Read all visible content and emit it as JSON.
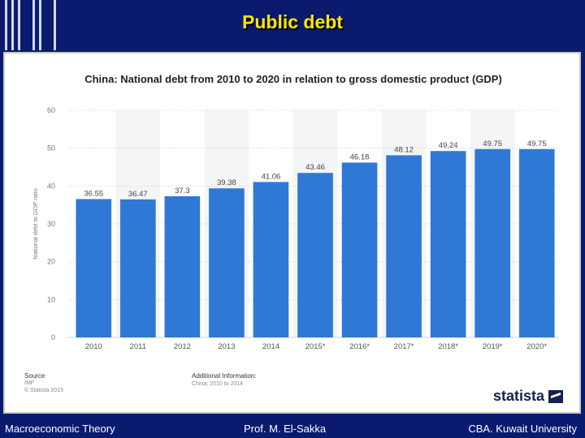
{
  "slide": {
    "title": "Public debt",
    "footer_left": "Macroeconomic Theory",
    "footer_center": "Prof. M. El-Sakka",
    "footer_right": "CBA. Kuwait University"
  },
  "source": {
    "label": "Source",
    "name": "IMF",
    "copyright": "© Statista 2015",
    "additional_label": "Additional Information:",
    "additional_text": "China; 2010 to 2014",
    "logo": "statista"
  },
  "colors": {
    "bar": "#2f78d6",
    "background": "#0a1a6e",
    "title": "#ffe600"
  },
  "chart_data": {
    "type": "bar",
    "title": "China: National debt from 2010 to 2020 in relation to gross domestic product (GDP)",
    "xlabel": "",
    "ylabel": "National debt to GDP ratio",
    "categories": [
      "2010",
      "2011",
      "2012",
      "2013",
      "2014",
      "2015*",
      "2016*",
      "2017*",
      "2018*",
      "2019*",
      "2020*"
    ],
    "values": [
      36.55,
      36.47,
      37.3,
      39.38,
      41.06,
      43.46,
      46.18,
      48.12,
      49.24,
      49.75,
      49.75
    ],
    "ylim": [
      0,
      60
    ],
    "yticks": [
      0,
      10,
      20,
      30,
      40,
      50,
      60
    ],
    "grid": true
  }
}
